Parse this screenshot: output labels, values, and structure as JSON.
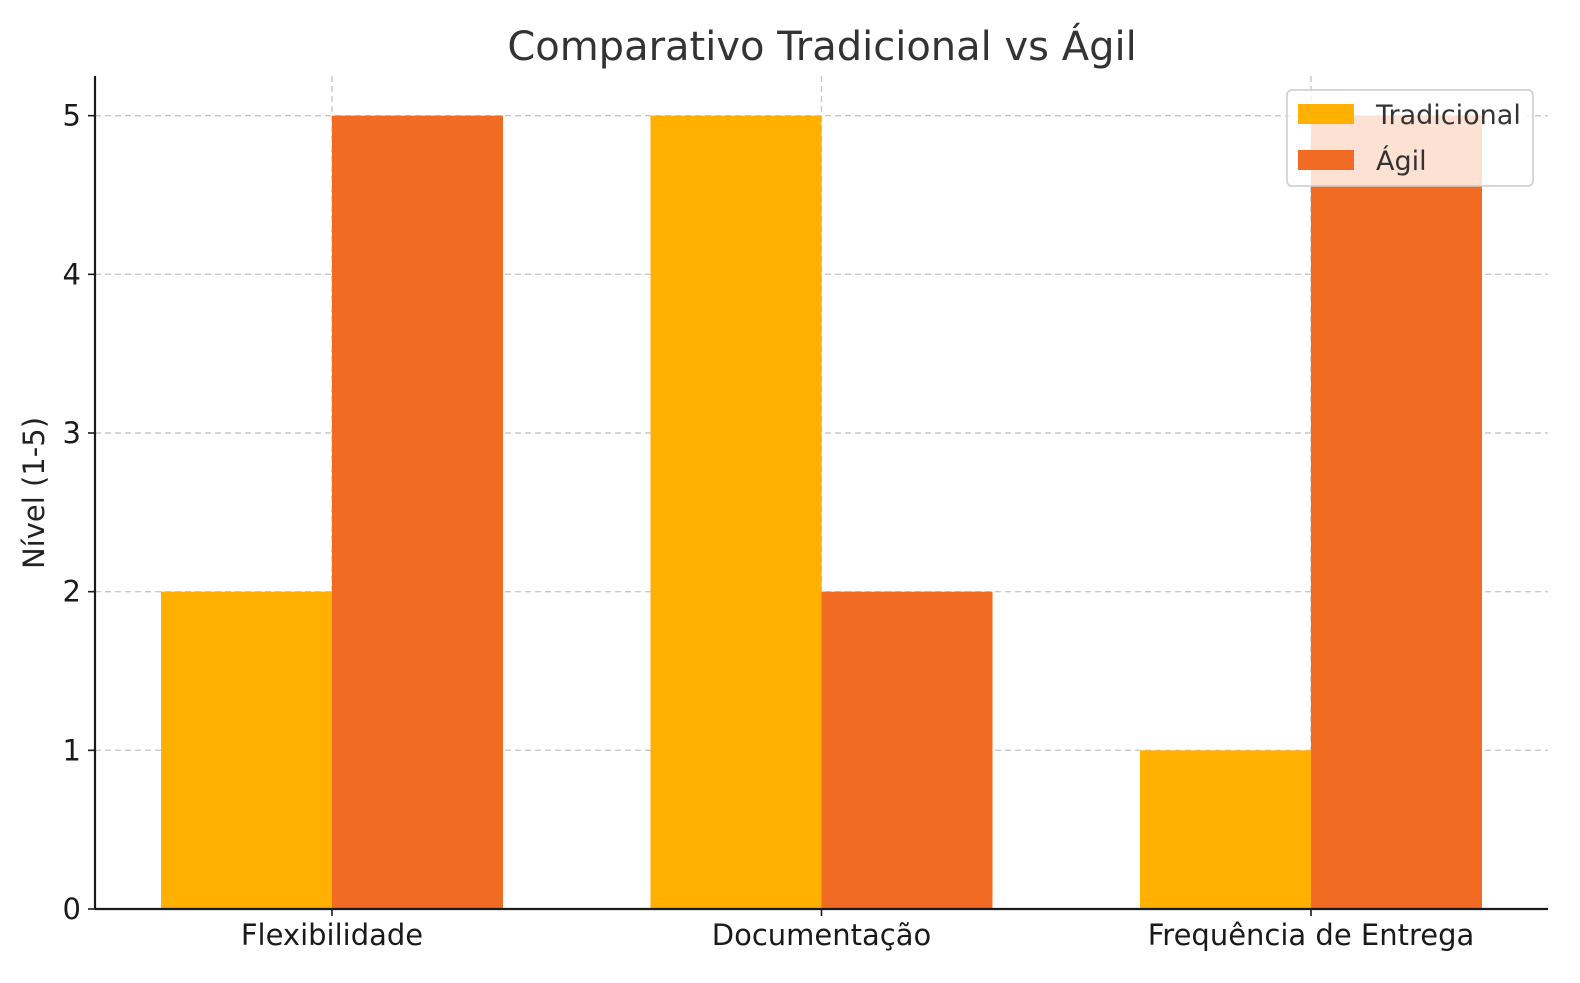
{
  "chart_data": {
    "type": "bar",
    "title": "Comparativo Tradicional vs Ágil",
    "xlabel": "",
    "ylabel": "Nível (1-5)",
    "categories": [
      "Flexibilidade",
      "Documentação",
      "Frequência de Entrega"
    ],
    "series": [
      {
        "name": "Tradicional",
        "values": [
          2,
          5,
          1
        ],
        "color": "#FFB000"
      },
      {
        "name": "Ágil",
        "values": [
          5,
          2,
          5
        ],
        "color": "#F26B22"
      }
    ],
    "ylim": [
      0,
      5.25
    ],
    "yticks": [
      0,
      1,
      2,
      3,
      4,
      5
    ],
    "grid": true,
    "legend_position": "top-right"
  }
}
